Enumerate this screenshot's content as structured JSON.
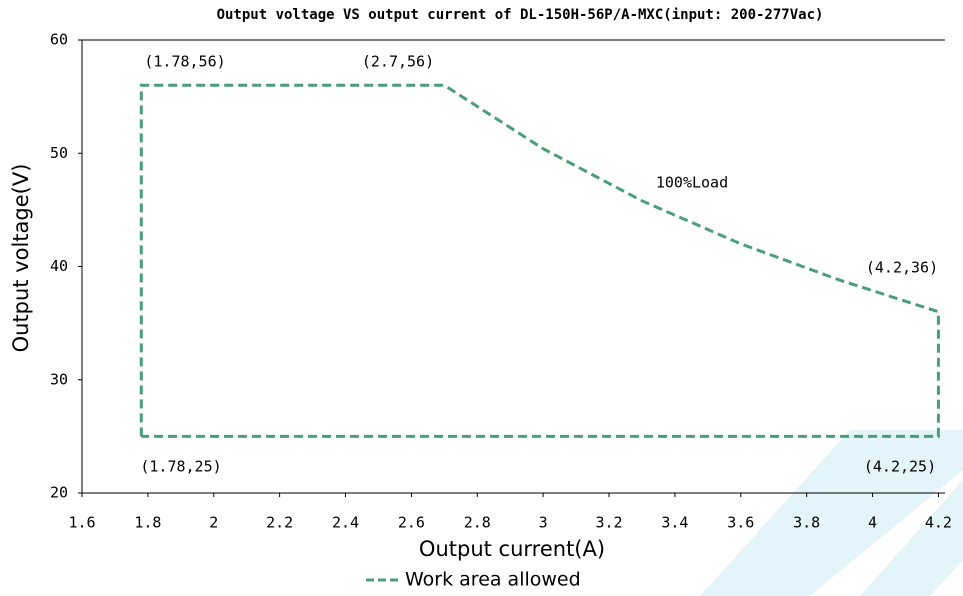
{
  "chart_data": {
    "type": "line",
    "title": "Output voltage VS output current of DL-150H-56P/A-MXC(input: 200-277Vac)",
    "x_label": "Output current(A)",
    "y_label": "Output voltage(V)",
    "xlim": [
      1.6,
      4.22
    ],
    "ylim": [
      20,
      60
    ],
    "xticks": [
      1.6,
      1.8,
      2,
      2.2,
      2.4,
      2.6,
      2.8,
      3,
      3.2,
      3.4,
      3.6,
      3.8,
      4,
      4.2
    ],
    "yticks": [
      20,
      30,
      40,
      50,
      60
    ],
    "series": [
      {
        "name": "Work area allowed",
        "color": "#4a9e7a",
        "dashed": true,
        "x": [
          1.78,
          1.78,
          2.7,
          3.0,
          3.3,
          3.6,
          3.9,
          4.2,
          4.2,
          1.78
        ],
        "y": [
          25,
          56,
          56,
          50.4,
          45.8,
          42,
          38.8,
          36,
          25,
          25
        ]
      }
    ],
    "annotations": [
      "(1.78,56)",
      "(2.7,56)",
      "100%Load",
      "(4.2,36)",
      "(1.78,25)",
      "(4.2,25)"
    ]
  }
}
